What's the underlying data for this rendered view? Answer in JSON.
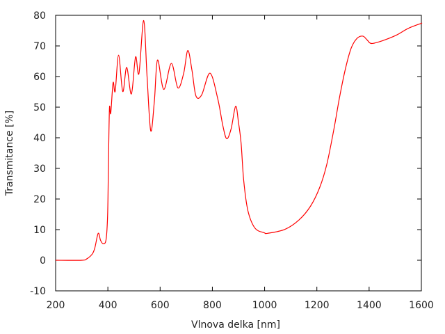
{
  "chart_data": {
    "type": "line",
    "title": "",
    "xlabel": "Vlnova delka [nm]",
    "ylabel": "Transmitance [%]",
    "xlim": [
      200,
      1600
    ],
    "ylim": [
      -10,
      80
    ],
    "xticks": [
      200,
      400,
      600,
      800,
      1000,
      1200,
      1400,
      1600
    ],
    "yticks": [
      -10,
      0,
      10,
      20,
      30,
      40,
      50,
      60,
      70,
      80
    ],
    "grid": false,
    "line_color": "#ff0000",
    "series": [
      {
        "x": [
          200,
          300,
          320,
          340,
          350,
          363,
          372,
          382,
          393,
          399,
          402,
          406,
          411,
          420,
          428,
          441,
          457,
          472,
          490,
          506,
          519,
          537,
          550,
          564,
          578,
          590,
          614,
          643,
          668,
          690,
          706,
          722,
          737,
          759,
          791,
          821,
          840,
          855,
          872,
          889,
          900,
          910,
          920,
          936,
          963,
          998,
          1012,
          1078,
          1132,
          1176,
          1211,
          1238,
          1265,
          1287,
          1309,
          1331,
          1353,
          1376,
          1393,
          1409,
          1451,
          1504,
          1549,
          1597,
          1600
        ],
        "y": [
          0,
          0,
          0.5,
          2,
          4,
          8.8,
          6.5,
          5.4,
          6.7,
          14.7,
          30,
          49.5,
          48,
          58,
          55.2,
          67,
          55.1,
          63,
          54.3,
          66.4,
          61,
          78.3,
          60,
          42.3,
          52,
          65.4,
          55.8,
          64.3,
          56.3,
          61,
          68.5,
          62,
          53.7,
          54,
          61.1,
          52.6,
          44,
          39.7,
          43,
          50.3,
          45,
          38.2,
          26,
          16.2,
          10.5,
          9,
          8.8,
          10.1,
          13.2,
          17.7,
          23.8,
          31.3,
          42.7,
          53.3,
          62.4,
          69.2,
          72.4,
          73.2,
          71.9,
          70.8,
          71.7,
          73.5,
          75.7,
          77.3,
          77.4
        ]
      }
    ]
  }
}
